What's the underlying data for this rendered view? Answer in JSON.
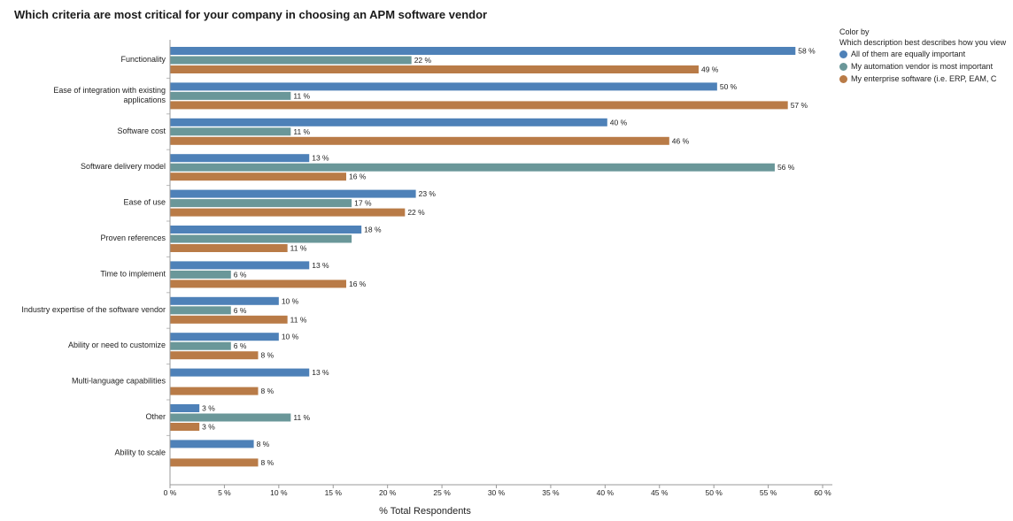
{
  "chart_data": {
    "type": "bar",
    "orientation": "horizontal",
    "title": "Which criteria are most critical for your company in choosing an APM software vendor",
    "xlabel": "% Total Respondents",
    "ylabel": "",
    "xlim": [
      0,
      60
    ],
    "x_ticks": [
      "0 %",
      "5 %",
      "10 %",
      "15 %",
      "20 %",
      "25 %",
      "30 %",
      "35 %",
      "40 %",
      "45 %",
      "50 %",
      "55 %",
      "60 %"
    ],
    "x_tick_values": [
      0,
      5,
      10,
      15,
      20,
      25,
      30,
      35,
      40,
      45,
      50,
      55,
      60
    ],
    "grid": false,
    "legend_position": "top-right",
    "categories": [
      "Functionality",
      "Ease of integration with existing applications",
      "Software cost",
      "Software delivery model",
      "Ease of use",
      "Proven references",
      "Time to implement",
      "Industry expertise of the software vendor",
      "Ability or need to customize",
      "Multi-language capabilities",
      "Other",
      "Ability to scale"
    ],
    "category_lines": [
      [
        "Functionality"
      ],
      [
        "Ease of integration with existing",
        "applications"
      ],
      [
        "Software cost"
      ],
      [
        "Software delivery model"
      ],
      [
        "Ease of use"
      ],
      [
        "Proven references"
      ],
      [
        "Time to implement"
      ],
      [
        "Industry expertise of the software vendor"
      ],
      [
        "Ability or need to customize"
      ],
      [
        "Multi-language capabilities"
      ],
      [
        "Other"
      ],
      [
        "Ability to scale"
      ]
    ],
    "series": [
      {
        "name": "All of them are equally important",
        "color": "#4e81b8",
        "values": [
          57.5,
          50.3,
          40.2,
          12.8,
          22.6,
          17.6,
          12.8,
          10.0,
          10.0,
          12.8,
          2.7,
          7.7
        ],
        "labels": [
          "58 %",
          "50 %",
          "40 %",
          "13 %",
          "23 %",
          "18 %",
          "13 %",
          "10 %",
          "10 %",
          "13 %",
          "3 %",
          "8 %"
        ]
      },
      {
        "name": "My automation vendor is most important",
        "color": "#6a9799",
        "values": [
          22.2,
          11.1,
          11.1,
          55.6,
          16.7,
          16.7,
          5.6,
          5.6,
          5.6,
          null,
          11.1,
          null
        ],
        "labels": [
          "22 %",
          "11 %",
          "11 %",
          "56 %",
          "17 %",
          null,
          "6 %",
          "6 %",
          "6 %",
          null,
          "11 %",
          null
        ]
      },
      {
        "name": "My enterprise software (i.e. ERP, EAM, C",
        "color": "#b97b47",
        "values": [
          48.6,
          56.8,
          45.9,
          16.2,
          21.6,
          10.8,
          16.2,
          10.8,
          8.1,
          8.1,
          2.7,
          8.1
        ],
        "labels": [
          "49 %",
          "57 %",
          "46 %",
          "16 %",
          "22 %",
          "11 %",
          "16 %",
          "11 %",
          "8 %",
          "8 %",
          "3 %",
          "8 %"
        ]
      }
    ]
  },
  "legend": {
    "title": "Color by",
    "subtitle": "Which description best describes how you view"
  }
}
